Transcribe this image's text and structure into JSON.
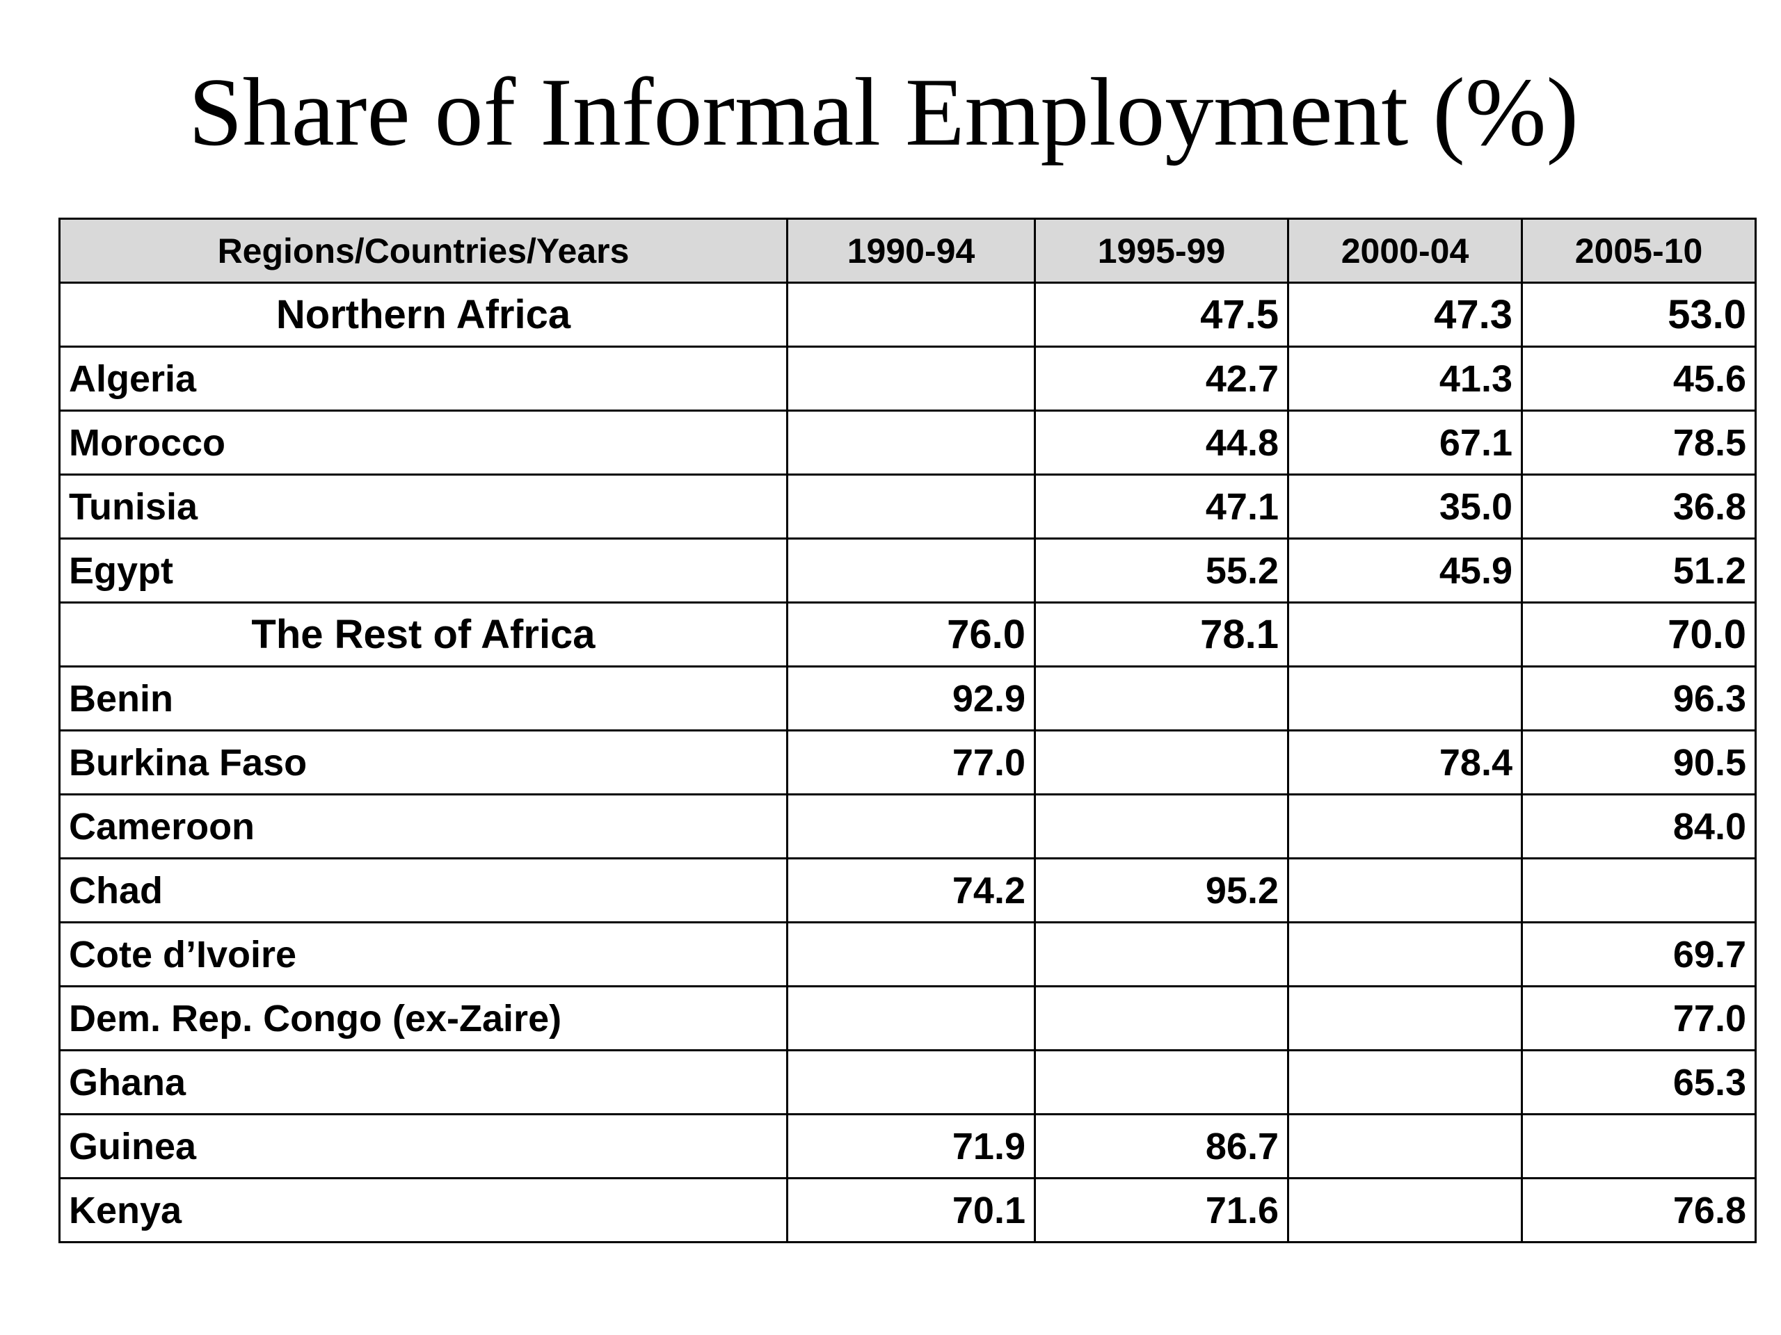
{
  "title": "Share of Informal Employment (%)",
  "table": {
    "headers": [
      "Regions/Countries/Years",
      "1990-94",
      "1995-99",
      "2000-04",
      "2005-10"
    ],
    "rows": [
      {
        "label": "Northern Africa",
        "region": true,
        "values": [
          "",
          "47.5",
          "47.3",
          "53.0"
        ]
      },
      {
        "label": "Algeria",
        "region": false,
        "values": [
          "",
          "42.7",
          "41.3",
          "45.6"
        ]
      },
      {
        "label": "Morocco",
        "region": false,
        "values": [
          "",
          "44.8",
          "67.1",
          "78.5"
        ]
      },
      {
        "label": "Tunisia",
        "region": false,
        "values": [
          "",
          "47.1",
          "35.0",
          "36.8"
        ]
      },
      {
        "label": "Egypt",
        "region": false,
        "values": [
          "",
          "55.2",
          "45.9",
          "51.2"
        ]
      },
      {
        "label": "The Rest of Africa",
        "region": true,
        "values": [
          "76.0",
          "78.1",
          "",
          "70.0"
        ]
      },
      {
        "label": "Benin",
        "region": false,
        "values": [
          "92.9",
          "",
          "",
          "96.3"
        ]
      },
      {
        "label": "Burkina Faso",
        "region": false,
        "values": [
          "77.0",
          "",
          "78.4",
          "90.5"
        ]
      },
      {
        "label": "Cameroon",
        "region": false,
        "values": [
          "",
          "",
          "",
          "84.0"
        ]
      },
      {
        "label": "Chad",
        "region": false,
        "values": [
          "74.2",
          "95.2",
          "",
          ""
        ]
      },
      {
        "label": "Cote d’Ivoire",
        "region": false,
        "values": [
          "",
          "",
          "",
          "69.7"
        ]
      },
      {
        "label": "Dem. Rep. Congo (ex-Zaire)",
        "region": false,
        "values": [
          "",
          "",
          "",
          "77.0"
        ]
      },
      {
        "label": "Ghana",
        "region": false,
        "values": [
          "",
          "",
          "",
          "65.3"
        ]
      },
      {
        "label": "Guinea",
        "region": false,
        "values": [
          "71.9",
          "86.7",
          "",
          ""
        ]
      },
      {
        "label": "Kenya",
        "region": false,
        "values": [
          "70.1",
          "71.6",
          "",
          "76.8"
        ]
      }
    ]
  }
}
